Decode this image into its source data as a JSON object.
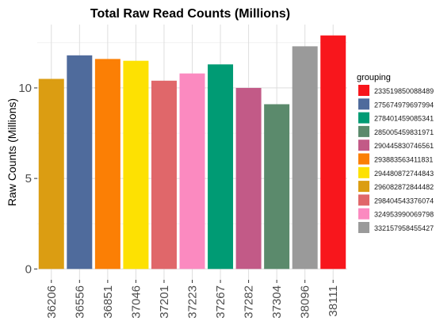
{
  "chart_data": {
    "type": "bar",
    "title": "Total Raw Read Counts (Millions)",
    "xlabel": "",
    "ylabel": "Raw Counts (Millions)",
    "ylim": [
      -0.6,
      13.5
    ],
    "yticks": [
      0,
      5,
      10
    ],
    "grid": true,
    "legend_position": "right",
    "legend_title": "grouping",
    "categories": [
      "36206",
      "36556",
      "36851",
      "37046",
      "37201",
      "37223",
      "37267",
      "37282",
      "37304",
      "38096",
      "38111"
    ],
    "values": [
      10.5,
      11.8,
      11.6,
      11.5,
      10.4,
      10.8,
      11.3,
      10.0,
      9.1,
      12.3,
      12.9
    ],
    "bar_groups": [
      "296082872844482",
      "275674979697994",
      "293883563411831",
      "294480872744843",
      "298404543376074",
      "324953990069798",
      "278401459085341",
      "290445830746561",
      "285005459831971",
      "332157958455427",
      "233519850088489"
    ],
    "legend": [
      {
        "label": "233519850088489",
        "color": "#f8161c"
      },
      {
        "label": "275674979697994",
        "color": "#4f6b9c"
      },
      {
        "label": "278401459085341",
        "color": "#009b74"
      },
      {
        "label": "285005459831971",
        "color": "#5b8a6c"
      },
      {
        "label": "290445830746561",
        "color": "#c25a87"
      },
      {
        "label": "293883563411831",
        "color": "#fb7f05"
      },
      {
        "label": "294480872744843",
        "color": "#fde102"
      },
      {
        "label": "296082872844482",
        "color": "#db9d12"
      },
      {
        "label": "298404543376074",
        "color": "#e0676a"
      },
      {
        "label": "324953990069798",
        "color": "#fb8ac0"
      },
      {
        "label": "332157958455427",
        "color": "#9a9a9a"
      }
    ]
  }
}
